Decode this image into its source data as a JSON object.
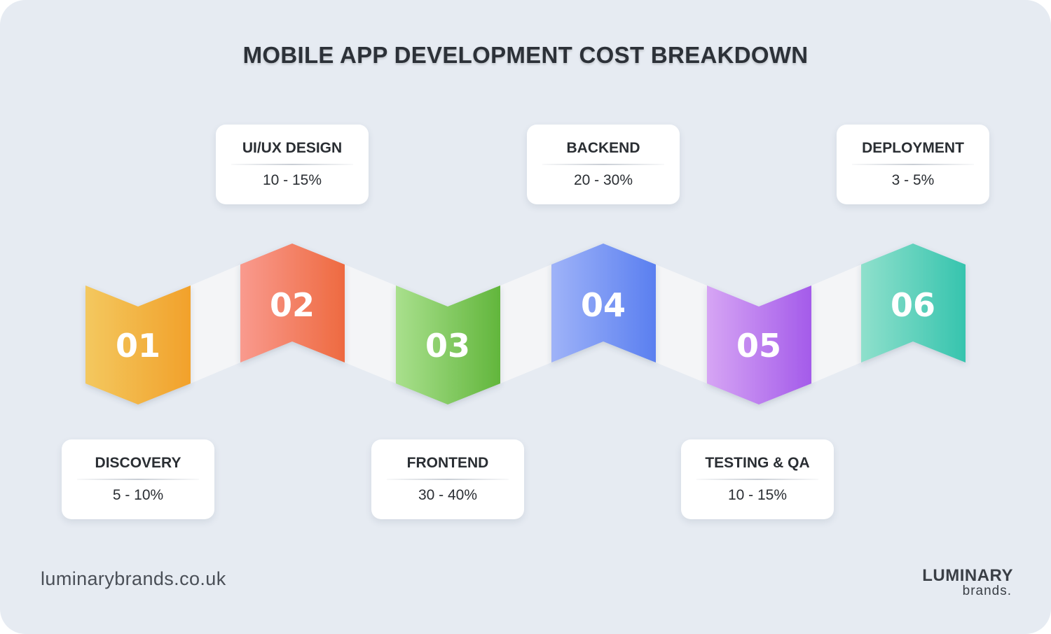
{
  "title": "MOBILE APP DEVELOPMENT COST BREAKDOWN",
  "steps": [
    {
      "number": "01",
      "label": "DISCOVERY",
      "range": "5 - 10%",
      "color_a": "#f3c85f",
      "color_b": "#f2a12b"
    },
    {
      "number": "02",
      "label": "UI/UX DESIGN",
      "range": "10 - 15%",
      "color_a": "#f99a8e",
      "color_b": "#ee6a40"
    },
    {
      "number": "03",
      "label": "FRONTEND",
      "range": "30 - 40%",
      "color_a": "#a9e08d",
      "color_b": "#62b63c"
    },
    {
      "number": "04",
      "label": "BACKEND",
      "range": "20 - 30%",
      "color_a": "#9fb3f8",
      "color_b": "#5a7ff0"
    },
    {
      "number": "05",
      "label": "TESTING & QA",
      "range": "10 - 15%",
      "color_a": "#d6a5f4",
      "color_b": "#a45bea"
    },
    {
      "number": "06",
      "label": "DEPLOYMENT",
      "range": "3 - 5%",
      "color_a": "#8fe0cc",
      "color_b": "#36c4ae"
    }
  ],
  "footer": {
    "website": "luminarybrands.co.uk",
    "logo_top": "LUMINARY",
    "logo_bottom": "brands."
  }
}
